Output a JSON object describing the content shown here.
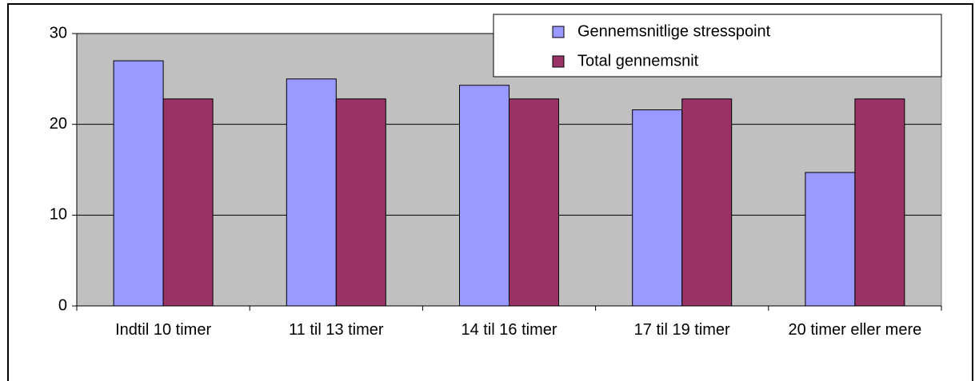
{
  "chart_data": {
    "type": "bar",
    "categories": [
      "Indtil 10 timer",
      "11 til 13 timer",
      "14 til 16 timer",
      "17 til 19 timer",
      "20 timer eller mere"
    ],
    "series": [
      {
        "name": "Gennemsnitlige stresspoint",
        "color": "#9999ff",
        "values": [
          27.0,
          25.0,
          24.3,
          21.6,
          14.7
        ]
      },
      {
        "name": "Total gennemsnit",
        "color": "#993366",
        "values": [
          22.8,
          22.8,
          22.8,
          22.8,
          22.8
        ]
      }
    ],
    "ylim": [
      0,
      30
    ],
    "yticks": [
      0,
      10,
      20,
      30
    ],
    "grid": true,
    "legend": "upper right"
  }
}
